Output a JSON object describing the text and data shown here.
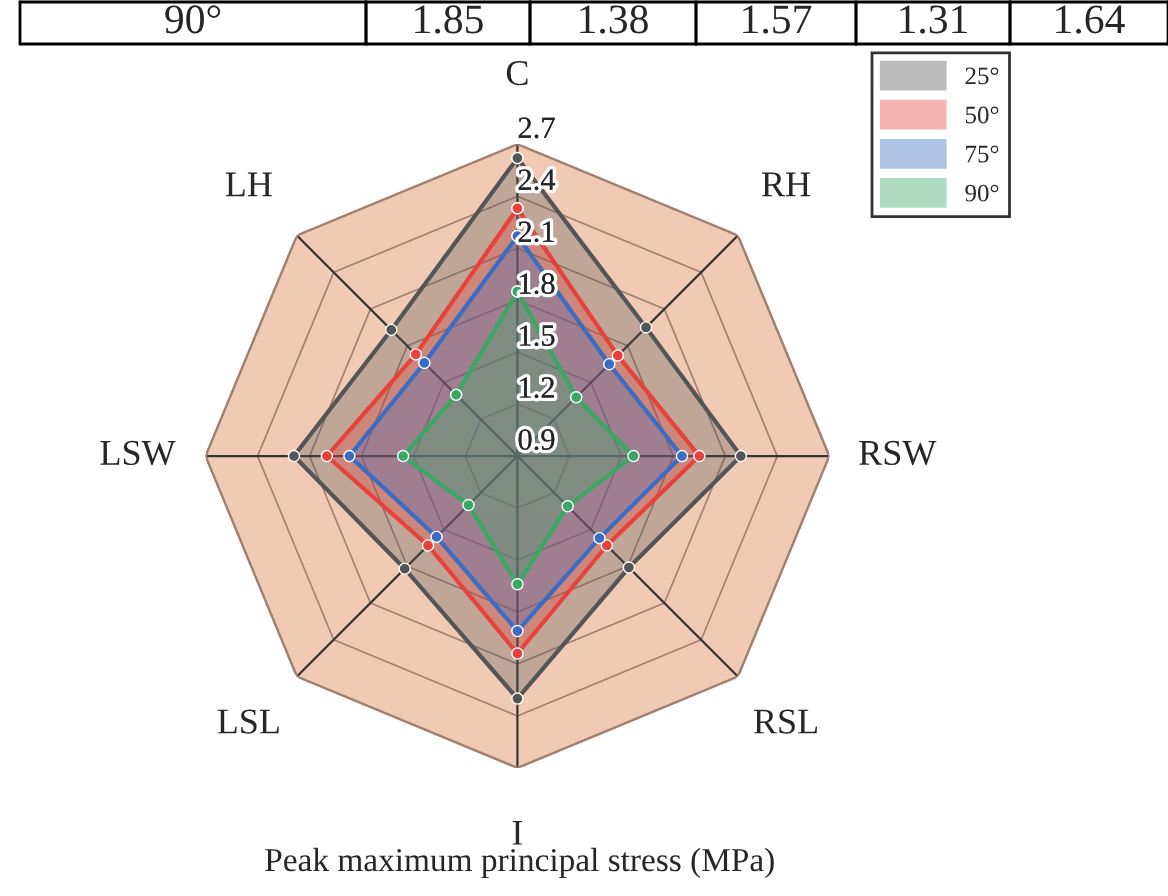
{
  "chart_data": {
    "type": "radar",
    "xlabel": "Peak maximum principal stress (MPa)",
    "annotations": [
      "90°",
      "1.85",
      "1.38",
      "1.57",
      "1.31",
      "1.64"
    ],
    "categories": [
      "C",
      "RH",
      "RSW",
      "RSL",
      "I",
      "LSL",
      "LSW",
      "LH"
    ],
    "ylim": [
      0.9,
      2.7
    ],
    "yticks": [
      0.9,
      1.2,
      1.5,
      1.8,
      2.1,
      2.4,
      2.7
    ],
    "grid": true,
    "legend": "top right",
    "marker": "circle",
    "series": [
      {
        "name": "25°",
        "color": "#555555",
        "values": [
          2.62,
          1.95,
          2.19,
          1.81,
          2.3,
          1.82,
          2.19,
          1.93
        ]
      },
      {
        "name": "50°",
        "color": "#e8413c",
        "values": [
          2.33,
          1.72,
          1.95,
          1.63,
          2.04,
          1.63,
          2.0,
          1.73
        ]
      },
      {
        "name": "75°",
        "color": "#3a6cc4",
        "values": [
          2.17,
          1.65,
          1.85,
          1.57,
          1.91,
          1.56,
          1.87,
          1.66
        ]
      },
      {
        "name": "90°",
        "color": "#3aa864",
        "values": [
          1.85,
          1.38,
          1.57,
          1.31,
          1.64,
          1.3,
          1.56,
          1.4
        ]
      }
    ]
  }
}
